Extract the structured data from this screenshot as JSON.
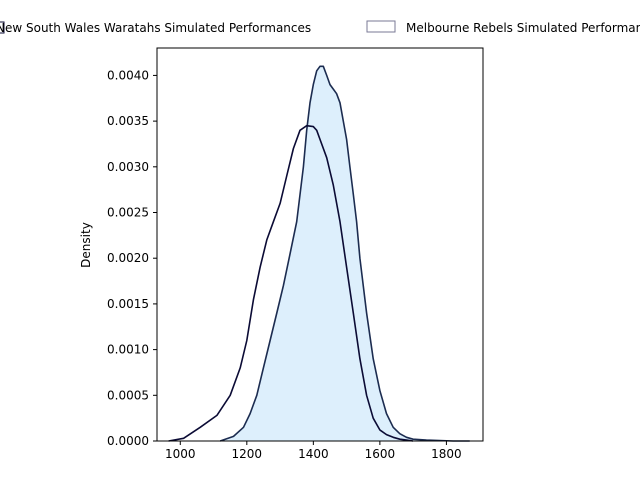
{
  "chart_data": {
    "type": "area",
    "title": "",
    "xlabel": "",
    "ylabel": "Density",
    "xlim": [
      930,
      1910
    ],
    "ylim": [
      0,
      0.0043
    ],
    "xticks": [
      1000,
      1200,
      1400,
      1600,
      1800
    ],
    "yticks": [
      0.0,
      0.0005,
      0.001,
      0.0015,
      0.002,
      0.0025,
      0.003,
      0.0035,
      0.004
    ],
    "grid": false,
    "legend_placement": "top-center, outside plot",
    "series": [
      {
        "name": "New South Wales Waratahs Simulated Performances",
        "kind": "kde-line",
        "color": "#0b0b35",
        "filled": false,
        "x": [
          965,
          1010,
          1060,
          1110,
          1150,
          1180,
          1200,
          1220,
          1240,
          1260,
          1280,
          1300,
          1320,
          1340,
          1360,
          1380,
          1400,
          1410,
          1420,
          1440,
          1460,
          1480,
          1500,
          1520,
          1540,
          1560,
          1580,
          1600,
          1620,
          1640,
          1660,
          1680,
          1700
        ],
        "y": [
          0.0,
          3e-05,
          0.00015,
          0.00028,
          0.0005,
          0.0008,
          0.0011,
          0.00155,
          0.0019,
          0.0022,
          0.0024,
          0.0026,
          0.0029,
          0.0032,
          0.0034,
          0.00345,
          0.00344,
          0.0034,
          0.0033,
          0.0031,
          0.0028,
          0.0024,
          0.0019,
          0.0014,
          0.0009,
          0.0005,
          0.00025,
          0.00012,
          7e-05,
          4e-05,
          2e-05,
          1e-05,
          0.0
        ]
      },
      {
        "name": "Melbourne Rebels Simulated Performances",
        "kind": "kde-area",
        "color": "#1c2c50",
        "fill": "#ddeffc",
        "filled": true,
        "x": [
          1120,
          1160,
          1190,
          1210,
          1230,
          1250,
          1270,
          1290,
          1310,
          1330,
          1350,
          1370,
          1380,
          1390,
          1400,
          1410,
          1420,
          1430,
          1440,
          1450,
          1460,
          1470,
          1480,
          1490,
          1500,
          1510,
          1520,
          1530,
          1540,
          1560,
          1580,
          1600,
          1620,
          1640,
          1660,
          1680,
          1700,
          1740,
          1780,
          1820,
          1870
        ],
        "y": [
          0.0,
          5e-05,
          0.00015,
          0.0003,
          0.0005,
          0.0008,
          0.0011,
          0.0014,
          0.0017,
          0.00205,
          0.0024,
          0.003,
          0.0034,
          0.0037,
          0.0039,
          0.00405,
          0.0041,
          0.0041,
          0.004,
          0.0039,
          0.00385,
          0.0038,
          0.0037,
          0.0035,
          0.0033,
          0.003,
          0.0027,
          0.0024,
          0.002,
          0.0014,
          0.0009,
          0.00055,
          0.0003,
          0.00015,
          8e-05,
          4e-05,
          2e-05,
          1e-05,
          5e-06,
          0.0,
          0.0
        ]
      }
    ]
  }
}
